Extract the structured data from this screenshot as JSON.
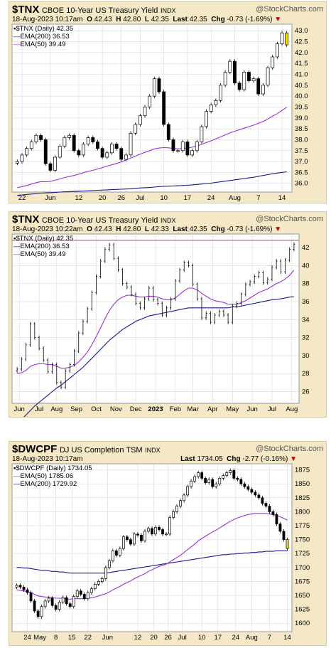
{
  "colors": {
    "panel_bg": "#f5e8c6",
    "plot_bg": "#ffffff",
    "grid": "#d9d9d9",
    "price": "#000000",
    "ema50": "#9b30d9",
    "ema200": "#1a1a8a",
    "red": "#c00000",
    "yellow": "#f4e100"
  },
  "chart_data": [
    {
      "type": "candlestick",
      "header": {
        "symbol": "$TNX",
        "description": "CBOE 10-Year US Treasury Yield",
        "exchange": "INDX",
        "stockcharts": "@StockCharts.com",
        "date": "18-Aug-2023 10:17am",
        "o_label": "O",
        "o": "42.43",
        "h_label": "H",
        "h": "42.80",
        "l_label": "L",
        "l": "42.35",
        "last_label": "Last",
        "last": "42.35",
        "chg_label": "Chg",
        "chg": "-0.73 (-1.69%)",
        "arrow": "▼"
      },
      "legend": [
        {
          "label": "$TNX (Daily) 42.35",
          "color": "#000000",
          "icon": "square"
        },
        {
          "label": "EMA(200) 36.53",
          "color": "#1a1a8a"
        },
        {
          "label": "EMA(50) 39.49",
          "color": "#9b30d9"
        }
      ],
      "y_ticks": [
        "36.0",
        "36.5",
        "37.0",
        "37.5",
        "38.0",
        "38.5",
        "39.0",
        "39.5",
        "40.0",
        "40.5",
        "41.0",
        "41.5",
        "42.0",
        "42.5",
        "43.0"
      ],
      "ylim": [
        35.6,
        43.3
      ],
      "x_ticks": [
        {
          "label": "22",
          "i": 1
        },
        {
          "label": "Jun",
          "i": 7
        },
        {
          "label": "12",
          "i": 13
        },
        {
          "label": "20",
          "i": 18
        },
        {
          "label": "26",
          "i": 22
        },
        {
          "label": "Jul",
          "i": 26
        },
        {
          "label": "10",
          "i": 31
        },
        {
          "label": "17",
          "i": 36
        },
        {
          "label": "24",
          "i": 41
        },
        {
          "label": "Aug",
          "i": 46
        },
        {
          "label": "7",
          "i": 51
        },
        {
          "label": "14",
          "i": 56
        }
      ],
      "close": [
        37.0,
        37.3,
        37.6,
        37.9,
        38.2,
        38.0,
        36.9,
        36.6,
        37.2,
        37.7,
        38.1,
        38.2,
        37.5,
        37.3,
        37.8,
        38.1,
        37.9,
        37.6,
        37.2,
        37.4,
        37.8,
        37.6,
        37.1,
        37.3,
        38.3,
        38.7,
        39.1,
        39.5,
        40.0,
        40.8,
        40.2,
        38.7,
        38.0,
        37.5,
        37.5,
        37.9,
        37.3,
        37.5,
        37.9,
        38.6,
        39.3,
        39.6,
        39.8,
        40.5,
        41.1,
        41.6,
        40.6,
        40.3,
        41.1,
        40.7,
        40.8,
        40.1,
        40.5,
        41.3,
        41.8,
        42.4,
        42.9,
        42.35
      ],
      "ema50": [
        35.8,
        35.85,
        35.9,
        35.97,
        36.03,
        36.08,
        36.07,
        36.09,
        36.14,
        36.2,
        36.27,
        36.31,
        36.36,
        36.42,
        36.49,
        36.55,
        36.6,
        36.66,
        36.72,
        36.79,
        36.85,
        36.91,
        36.98,
        37.07,
        37.16,
        37.25,
        37.34,
        37.42,
        37.5,
        37.58,
        37.62,
        37.64,
        37.63,
        37.6,
        37.58,
        37.6,
        37.62,
        37.66,
        37.72,
        37.79,
        37.87,
        37.95,
        38.04,
        38.13,
        38.22,
        38.32,
        38.39,
        38.46,
        38.53,
        38.6,
        38.67,
        38.75,
        38.84,
        38.95,
        39.08,
        39.2,
        39.35,
        39.49
      ],
      "ema200": [
        35.45,
        35.47,
        35.49,
        35.51,
        35.53,
        35.55,
        35.56,
        35.57,
        35.58,
        35.6,
        35.61,
        35.62,
        35.63,
        35.64,
        35.65,
        35.66,
        35.67,
        35.68,
        35.69,
        35.7,
        35.71,
        35.72,
        35.73,
        35.74,
        35.75,
        35.77,
        35.79,
        35.8,
        35.81,
        35.83,
        35.85,
        35.86,
        35.87,
        35.88,
        35.89,
        35.9,
        35.91,
        35.93,
        35.95,
        35.97,
        35.99,
        36.01,
        36.04,
        36.07,
        36.1,
        36.13,
        36.16,
        36.19,
        36.22,
        36.25,
        36.28,
        36.32,
        36.36,
        36.4,
        36.44,
        36.47,
        36.5,
        36.53
      ]
    },
    {
      "type": "bar-ohlc",
      "header": {
        "symbol": "$TNX",
        "description": "CBOE 10-Year US Treasury Yield",
        "exchange": "INDX",
        "stockcharts": "@StockCharts.com",
        "date": "18-Aug-2023 10:22am",
        "o_label": "O",
        "o": "42.43",
        "h_label": "H",
        "h": "42.80",
        "l_label": "L",
        "l": "42.33",
        "last_label": "Last",
        "last": "42.35",
        "chg_label": "Chg",
        "chg": "-0.73 (-1.69%)",
        "arrow": "▼"
      },
      "legend": [
        {
          "label": "$TNX (Daily) 42.35",
          "color": "#000000",
          "icon": "square"
        },
        {
          "label": "EMA(200) 36.53",
          "color": "#1a1a8a"
        },
        {
          "label": "EMA(50) 39.49",
          "color": "#9b30d9"
        }
      ],
      "y_ticks": [
        "26",
        "28",
        "30",
        "32",
        "34",
        "36",
        "38",
        "40",
        "42"
      ],
      "ylim": [
        24.7,
        43.5
      ],
      "x_ticks": [
        {
          "label": "Jun",
          "i": 0.5
        },
        {
          "label": "Jul",
          "i": 5
        },
        {
          "label": "Aug",
          "i": 9
        },
        {
          "label": "Sep",
          "i": 13.5
        },
        {
          "label": "Oct",
          "i": 18
        },
        {
          "label": "Nov",
          "i": 22.5
        },
        {
          "label": "Dec",
          "i": 27
        },
        {
          "label": "2023",
          "i": 31.5
        },
        {
          "label": "Feb",
          "i": 36
        },
        {
          "label": "Mar",
          "i": 40
        },
        {
          "label": "Apr",
          "i": 44.5
        },
        {
          "label": "May",
          "i": 49
        },
        {
          "label": "Jun",
          "i": 53.5
        },
        {
          "label": "Jul",
          "i": 58
        },
        {
          "label": "Aug",
          "i": 62.5
        }
      ],
      "close": [
        28.5,
        29.6,
        31.2,
        33.5,
        32.0,
        30.8,
        29.5,
        28.2,
        29.0,
        27.0,
        26.5,
        28.3,
        29.0,
        30.5,
        32.5,
        33.8,
        35.2,
        37.0,
        38.8,
        40.5,
        41.8,
        42.3,
        40.8,
        39.5,
        38.0,
        37.6,
        36.8,
        35.8,
        35.3,
        36.3,
        37.5,
        36.2,
        35.8,
        34.5,
        35.3,
        36.3,
        38.3,
        39.5,
        40.3,
        40.0,
        37.9,
        36.3,
        34.2,
        34.7,
        33.7,
        34.5,
        34.9,
        34.5,
        33.7,
        35.5,
        35.8,
        36.8,
        37.9,
        38.2,
        38.8,
        39.2,
        38.1,
        38.5,
        39.8,
        40.5,
        39.3,
        40.6,
        41.8,
        42.35
      ],
      "ema50": [
        28.0,
        28.1,
        28.35,
        28.8,
        29.0,
        29.1,
        29.1,
        29.0,
        29.0,
        28.8,
        28.6,
        28.6,
        28.7,
        28.9,
        29.3,
        29.8,
        30.4,
        31.2,
        32.1,
        33.1,
        34.1,
        35.0,
        35.7,
        36.2,
        36.5,
        36.7,
        36.7,
        36.6,
        36.5,
        36.5,
        36.6,
        36.6,
        36.5,
        36.3,
        36.2,
        36.2,
        36.4,
        36.8,
        37.2,
        37.5,
        37.5,
        37.3,
        36.9,
        36.6,
        36.3,
        36.1,
        36.0,
        35.9,
        35.7,
        35.7,
        35.7,
        35.9,
        36.1,
        36.4,
        36.7,
        37.0,
        37.2,
        37.4,
        37.7,
        38.0,
        38.2,
        38.5,
        38.9,
        39.49
      ],
      "ema200": [
        22.5,
        22.9,
        23.4,
        23.9,
        24.4,
        24.8,
        25.2,
        25.6,
        26.0,
        26.4,
        26.7,
        27.1,
        27.5,
        27.9,
        28.3,
        28.7,
        29.2,
        29.7,
        30.2,
        30.7,
        31.2,
        31.7,
        32.1,
        32.5,
        32.9,
        33.2,
        33.5,
        33.8,
        34.0,
        34.2,
        34.4,
        34.5,
        34.6,
        34.7,
        34.8,
        34.9,
        35.0,
        35.1,
        35.2,
        35.3,
        35.3,
        35.3,
        35.3,
        35.3,
        35.3,
        35.3,
        35.3,
        35.3,
        35.3,
        35.4,
        35.4,
        35.5,
        35.6,
        35.7,
        35.8,
        35.9,
        36.0,
        36.1,
        36.2,
        36.25,
        36.3,
        36.4,
        36.5,
        36.53
      ]
    },
    {
      "type": "candlestick",
      "header": {
        "symbol": "$DWCPF",
        "description": "DJ US Completion TSM",
        "exchange": "INDX",
        "stockcharts": "@StockCharts.com",
        "date": "18-Aug-2023 10:17am",
        "o_label": "",
        "o": "",
        "h_label": "",
        "h": "",
        "l_label": "",
        "l": "",
        "last_label": "Last",
        "last": "1734.05",
        "chg_label": "Chg",
        "chg": "-2.77 (-0.16%)",
        "arrow": "▼"
      },
      "legend": [
        {
          "label": "$DWCPF (Daily) 1734.05",
          "color": "#000000",
          "icon": "square"
        },
        {
          "label": "EMA(50) 1785.06",
          "color": "#9b30d9"
        },
        {
          "label": "EMA(200) 1729.92",
          "color": "#1a1a8a"
        }
      ],
      "y_ticks": [
        "1600",
        "1625",
        "1650",
        "1675",
        "1700",
        "1725",
        "1750",
        "1775",
        "1800",
        "1825",
        "1850",
        "1875"
      ],
      "ylim": [
        1585,
        1886
      ],
      "x_ticks": [
        {
          "label": "24",
          "i": 3
        },
        {
          "label": "May",
          "i": 6.5
        },
        {
          "label": "8",
          "i": 11
        },
        {
          "label": "15",
          "i": 15.5
        },
        {
          "label": "22",
          "i": 20
        },
        {
          "label": "Jun",
          "i": 25.5
        },
        {
          "label": "12",
          "i": 34
        },
        {
          "label": "20",
          "i": 38.5
        },
        {
          "label": "26",
          "i": 42.5
        },
        {
          "label": "Jul",
          "i": 46.5
        },
        {
          "label": "10",
          "i": 52
        },
        {
          "label": "17",
          "i": 56.5
        },
        {
          "label": "24",
          "i": 61.5
        },
        {
          "label": "Aug",
          "i": 66
        },
        {
          "label": "7",
          "i": 71
        },
        {
          "label": "14",
          "i": 76
        }
      ],
      "close": [
        1668,
        1665,
        1660,
        1655,
        1640,
        1622,
        1612,
        1630,
        1640,
        1645,
        1632,
        1625,
        1638,
        1646,
        1635,
        1630,
        1648,
        1658,
        1652,
        1644,
        1655,
        1662,
        1670,
        1675,
        1680,
        1700,
        1712,
        1730,
        1722,
        1734,
        1755,
        1750,
        1742,
        1760,
        1758,
        1748,
        1765,
        1770,
        1760,
        1772,
        1768,
        1760,
        1760,
        1790,
        1800,
        1810,
        1820,
        1830,
        1845,
        1855,
        1863,
        1870,
        1860,
        1852,
        1858,
        1845,
        1850,
        1860,
        1865,
        1870,
        1874,
        1860,
        1858,
        1850,
        1845,
        1840,
        1835,
        1830,
        1825,
        1815,
        1810,
        1800,
        1795,
        1778,
        1765,
        1750,
        1734
      ],
      "ema50": [
        1660,
        1659,
        1658,
        1657,
        1655,
        1652,
        1649,
        1648,
        1647,
        1647,
        1646,
        1645,
        1645,
        1645,
        1644,
        1643,
        1644,
        1644,
        1644,
        1644,
        1645,
        1646,
        1647,
        1649,
        1651,
        1653,
        1656,
        1660,
        1663,
        1666,
        1670,
        1673,
        1676,
        1680,
        1683,
        1686,
        1689,
        1693,
        1696,
        1699,
        1702,
        1704,
        1706,
        1710,
        1714,
        1718,
        1722,
        1727,
        1732,
        1737,
        1742,
        1748,
        1752,
        1756,
        1760,
        1764,
        1767,
        1771,
        1775,
        1779,
        1783,
        1786,
        1789,
        1791,
        1793,
        1795,
        1796,
        1797,
        1797,
        1797,
        1797,
        1796,
        1795,
        1793,
        1791,
        1788,
        1785.06
      ],
      "ema200": [
        1700,
        1700,
        1699,
        1699,
        1698,
        1697,
        1696,
        1695,
        1695,
        1694,
        1693,
        1693,
        1692,
        1692,
        1691,
        1690,
        1690,
        1690,
        1690,
        1690,
        1690,
        1690,
        1690,
        1690,
        1690,
        1690,
        1691,
        1692,
        1693,
        1694,
        1695,
        1696,
        1697,
        1698,
        1699,
        1700,
        1701,
        1702,
        1703,
        1704,
        1705,
        1706,
        1707,
        1708,
        1709,
        1710,
        1711,
        1712,
        1713,
        1714,
        1715,
        1716,
        1717,
        1718,
        1719,
        1720,
        1721,
        1722,
        1723,
        1723,
        1724,
        1724,
        1725,
        1725,
        1726,
        1726,
        1727,
        1727,
        1728,
        1728,
        1729,
        1729,
        1729,
        1730,
        1730,
        1730,
        1729.92
      ]
    }
  ]
}
